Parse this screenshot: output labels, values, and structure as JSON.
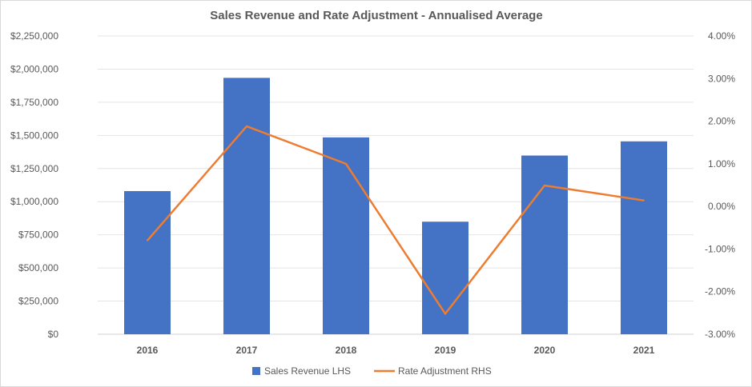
{
  "chart_data": {
    "type": "bar+line",
    "title": "Sales Revenue and Rate Adjustment - Annualised Average",
    "categories": [
      "2016",
      "2017",
      "2018",
      "2019",
      "2020",
      "2021"
    ],
    "series": [
      {
        "name": "Sales Revenue LHS",
        "type": "bar",
        "axis": "left",
        "color": "#4472c4",
        "values": [
          1080000,
          1934000,
          1485000,
          849000,
          1348000,
          1455000
        ]
      },
      {
        "name": "Rate Adjustment RHS",
        "type": "line",
        "axis": "right",
        "color": "#ed7d31",
        "values": [
          -0.8,
          1.88,
          1.0,
          -2.52,
          0.49,
          0.14
        ]
      }
    ],
    "left_axis": {
      "ylim": [
        0,
        2250000
      ],
      "ticks": [
        "$0",
        "$250,000",
        "$500,000",
        "$750,000",
        "$1,000,000",
        "$1,250,000",
        "$1,500,000",
        "$1,750,000",
        "$2,000,000",
        "$2,250,000"
      ]
    },
    "right_axis": {
      "ylim": [
        -3,
        4
      ],
      "ticks": [
        "-3.00%",
        "-2.00%",
        "-1.00%",
        "0.00%",
        "1.00%",
        "2.00%",
        "3.00%",
        "4.00%"
      ]
    },
    "grid": true,
    "legend": "bottom"
  }
}
